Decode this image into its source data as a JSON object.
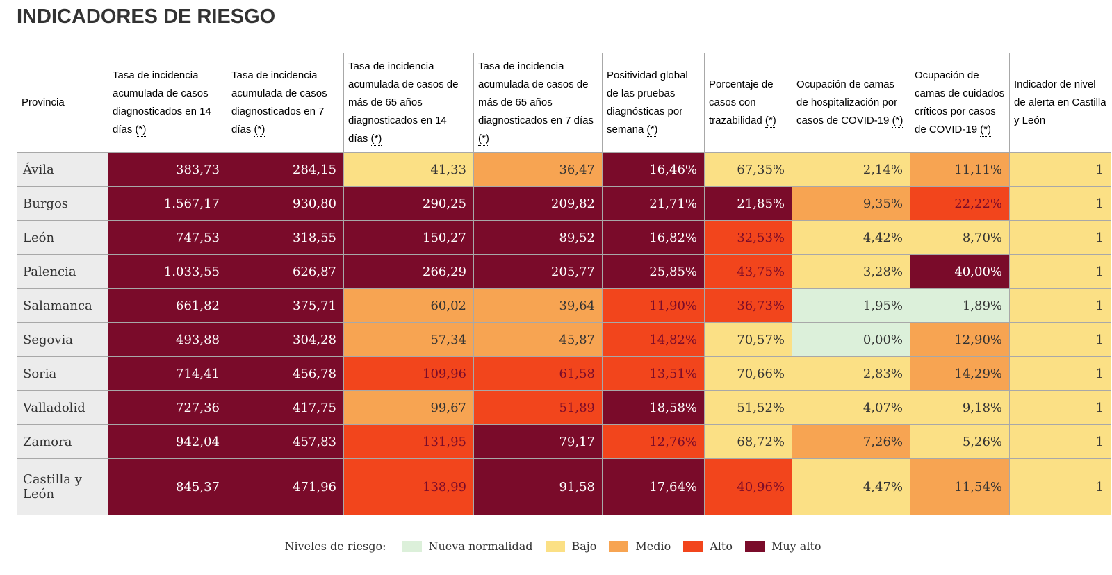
{
  "title": "INDICADORES DE RIESGO",
  "colors": {
    "nueva": "#dcf0da",
    "bajo": "#fbe085",
    "medio": "#f7a452",
    "alto": "#f2451c",
    "muyalto": "#7a0b2a"
  },
  "table": {
    "headers": [
      {
        "label": "Provincia",
        "star": ""
      },
      {
        "label": "Tasa de incidencia acumulada de casos diagnosticados en 14 días",
        "star": "(*)"
      },
      {
        "label": "Tasa de incidencia acumulada de casos diagnosticados en 7 días",
        "star": "(*)"
      },
      {
        "label": "Tasa de incidencia acumulada de casos de más de 65 años diagnosticados en 14 días",
        "star": "(*)"
      },
      {
        "label": "Tasa de incidencia acumulada de casos de más de 65 años diagnosticados en 7 días",
        "star": "(*)"
      },
      {
        "label": "Positividad global de las pruebas diagnósticas por semana",
        "star": "(*)"
      },
      {
        "label": "Porcentaje de casos con trazabilidad",
        "star": "(*)"
      },
      {
        "label": "Ocupación de camas de hospitalización por casos de COVID-19",
        "star": "(*)"
      },
      {
        "label": "Ocupación de camas de cuidados críticos por casos de COVID-19",
        "star": "(*)"
      },
      {
        "label": "Indicador de nivel de alerta en Castilla y León",
        "star": ""
      }
    ],
    "rows": [
      {
        "provincia": "Ávila",
        "cells": [
          {
            "value": "383,73",
            "level": "muyalto"
          },
          {
            "value": "284,15",
            "level": "muyalto"
          },
          {
            "value": "41,33",
            "level": "bajo"
          },
          {
            "value": "36,47",
            "level": "medio"
          },
          {
            "value": "16,46%",
            "level": "muyalto"
          },
          {
            "value": "67,35%",
            "level": "bajo"
          },
          {
            "value": "2,14%",
            "level": "bajo"
          },
          {
            "value": "11,11%",
            "level": "medio"
          },
          {
            "value": "1",
            "level": "bajo"
          }
        ]
      },
      {
        "provincia": "Burgos",
        "cells": [
          {
            "value": "1.567,17",
            "level": "muyalto"
          },
          {
            "value": "930,80",
            "level": "muyalto"
          },
          {
            "value": "290,25",
            "level": "muyalto"
          },
          {
            "value": "209,82",
            "level": "muyalto"
          },
          {
            "value": "21,71%",
            "level": "muyalto"
          },
          {
            "value": "21,85%",
            "level": "muyalto"
          },
          {
            "value": "9,35%",
            "level": "medio"
          },
          {
            "value": "22,22%",
            "level": "alto"
          },
          {
            "value": "1",
            "level": "bajo"
          }
        ]
      },
      {
        "provincia": "León",
        "cells": [
          {
            "value": "747,53",
            "level": "muyalto"
          },
          {
            "value": "318,55",
            "level": "muyalto"
          },
          {
            "value": "150,27",
            "level": "muyalto"
          },
          {
            "value": "89,52",
            "level": "muyalto"
          },
          {
            "value": "16,82%",
            "level": "muyalto"
          },
          {
            "value": "32,53%",
            "level": "alto"
          },
          {
            "value": "4,42%",
            "level": "bajo"
          },
          {
            "value": "8,70%",
            "level": "bajo"
          },
          {
            "value": "1",
            "level": "bajo"
          }
        ]
      },
      {
        "provincia": "Palencia",
        "cells": [
          {
            "value": "1.033,55",
            "level": "muyalto"
          },
          {
            "value": "626,87",
            "level": "muyalto"
          },
          {
            "value": "266,29",
            "level": "muyalto"
          },
          {
            "value": "205,77",
            "level": "muyalto"
          },
          {
            "value": "25,85%",
            "level": "muyalto"
          },
          {
            "value": "43,75%",
            "level": "alto"
          },
          {
            "value": "3,28%",
            "level": "bajo"
          },
          {
            "value": "40,00%",
            "level": "muyalto"
          },
          {
            "value": "1",
            "level": "bajo"
          }
        ]
      },
      {
        "provincia": "Salamanca",
        "cells": [
          {
            "value": "661,82",
            "level": "muyalto"
          },
          {
            "value": "375,71",
            "level": "muyalto"
          },
          {
            "value": "60,02",
            "level": "medio"
          },
          {
            "value": "39,64",
            "level": "medio"
          },
          {
            "value": "11,90%",
            "level": "alto"
          },
          {
            "value": "36,73%",
            "level": "alto"
          },
          {
            "value": "1,95%",
            "level": "nueva"
          },
          {
            "value": "1,89%",
            "level": "nueva"
          },
          {
            "value": "1",
            "level": "bajo"
          }
        ]
      },
      {
        "provincia": "Segovia",
        "cells": [
          {
            "value": "493,88",
            "level": "muyalto"
          },
          {
            "value": "304,28",
            "level": "muyalto"
          },
          {
            "value": "57,34",
            "level": "medio"
          },
          {
            "value": "45,87",
            "level": "medio"
          },
          {
            "value": "14,82%",
            "level": "alto"
          },
          {
            "value": "70,57%",
            "level": "bajo"
          },
          {
            "value": "0,00%",
            "level": "nueva"
          },
          {
            "value": "12,90%",
            "level": "medio"
          },
          {
            "value": "1",
            "level": "bajo"
          }
        ]
      },
      {
        "provincia": "Soria",
        "cells": [
          {
            "value": "714,41",
            "level": "muyalto"
          },
          {
            "value": "456,78",
            "level": "muyalto"
          },
          {
            "value": "109,96",
            "level": "alto"
          },
          {
            "value": "61,58",
            "level": "alto"
          },
          {
            "value": "13,51%",
            "level": "alto"
          },
          {
            "value": "70,66%",
            "level": "bajo"
          },
          {
            "value": "2,83%",
            "level": "bajo"
          },
          {
            "value": "14,29%",
            "level": "medio"
          },
          {
            "value": "1",
            "level": "bajo"
          }
        ]
      },
      {
        "provincia": "Valladolid",
        "cells": [
          {
            "value": "727,36",
            "level": "muyalto"
          },
          {
            "value": "417,75",
            "level": "muyalto"
          },
          {
            "value": "99,67",
            "level": "medio"
          },
          {
            "value": "51,89",
            "level": "alto"
          },
          {
            "value": "18,58%",
            "level": "muyalto"
          },
          {
            "value": "51,52%",
            "level": "bajo"
          },
          {
            "value": "4,07%",
            "level": "bajo"
          },
          {
            "value": "9,18%",
            "level": "bajo"
          },
          {
            "value": "1",
            "level": "bajo"
          }
        ]
      },
      {
        "provincia": "Zamora",
        "cells": [
          {
            "value": "942,04",
            "level": "muyalto"
          },
          {
            "value": "457,83",
            "level": "muyalto"
          },
          {
            "value": "131,95",
            "level": "alto"
          },
          {
            "value": "79,17",
            "level": "muyalto"
          },
          {
            "value": "12,76%",
            "level": "alto"
          },
          {
            "value": "68,72%",
            "level": "bajo"
          },
          {
            "value": "7,26%",
            "level": "medio"
          },
          {
            "value": "5,26%",
            "level": "bajo"
          },
          {
            "value": "1",
            "level": "bajo"
          }
        ]
      },
      {
        "provincia": "Castilla y León",
        "cells": [
          {
            "value": "845,37",
            "level": "muyalto"
          },
          {
            "value": "471,96",
            "level": "muyalto"
          },
          {
            "value": "138,99",
            "level": "alto"
          },
          {
            "value": "91,58",
            "level": "muyalto"
          },
          {
            "value": "17,64%",
            "level": "muyalto"
          },
          {
            "value": "40,96%",
            "level": "alto"
          },
          {
            "value": "4,47%",
            "level": "bajo"
          },
          {
            "value": "11,54%",
            "level": "medio"
          },
          {
            "value": "1",
            "level": "bajo"
          }
        ]
      }
    ]
  },
  "legend": {
    "title": "Niveles de riesgo:",
    "items": [
      {
        "label": "Nueva normalidad",
        "level": "nueva"
      },
      {
        "label": "Bajo",
        "level": "bajo"
      },
      {
        "label": "Medio",
        "level": "medio"
      },
      {
        "label": "Alto",
        "level": "alto"
      },
      {
        "label": "Muy alto",
        "level": "muyalto"
      }
    ]
  },
  "chart_data": {
    "type": "table",
    "title": "INDICADORES DE RIESGO",
    "columns": [
      "Provincia",
      "Tasa de incidencia acumulada de casos diagnosticados en 14 días",
      "Tasa de incidencia acumulada de casos diagnosticados en 7 días",
      "Tasa de incidencia acumulada de casos de más de 65 años diagnosticados en 14 días",
      "Tasa de incidencia acumulada de casos de más de 65 años diagnosticados en 7 días",
      "Positividad global de las pruebas diagnósticas por semana",
      "Porcentaje de casos con trazabilidad",
      "Ocupación de camas de hospitalización por casos de COVID-19",
      "Ocupación de camas de cuidados críticos por casos de COVID-19",
      "Indicador de nivel de alerta en Castilla y León"
    ],
    "categories": [
      "Ávila",
      "Burgos",
      "León",
      "Palencia",
      "Salamanca",
      "Segovia",
      "Soria",
      "Valladolid",
      "Zamora",
      "Castilla y León"
    ],
    "series": [
      {
        "name": "IA 14 días",
        "values": [
          383.73,
          1567.17,
          747.53,
          1033.55,
          661.82,
          493.88,
          714.41,
          727.36,
          942.04,
          845.37
        ]
      },
      {
        "name": "IA 7 días",
        "values": [
          284.15,
          930.8,
          318.55,
          626.87,
          375.71,
          304.28,
          456.78,
          417.75,
          457.83,
          471.96
        ]
      },
      {
        "name": "IA >65 años 14 días",
        "values": [
          41.33,
          290.25,
          150.27,
          266.29,
          60.02,
          57.34,
          109.96,
          99.67,
          131.95,
          138.99
        ]
      },
      {
        "name": "IA >65 años 7 días",
        "values": [
          36.47,
          209.82,
          89.52,
          205.77,
          39.64,
          45.87,
          61.58,
          51.89,
          79.17,
          91.58
        ]
      },
      {
        "name": "Positividad (%)",
        "values": [
          16.46,
          21.71,
          16.82,
          25.85,
          11.9,
          14.82,
          13.51,
          18.58,
          12.76,
          17.64
        ]
      },
      {
        "name": "Trazabilidad (%)",
        "values": [
          67.35,
          21.85,
          32.53,
          43.75,
          36.73,
          70.57,
          70.66,
          51.52,
          68.72,
          40.96
        ]
      },
      {
        "name": "Ocupación hospitalización (%)",
        "values": [
          2.14,
          9.35,
          4.42,
          3.28,
          1.95,
          0.0,
          2.83,
          4.07,
          7.26,
          4.47
        ]
      },
      {
        "name": "Ocupación críticos (%)",
        "values": [
          11.11,
          22.22,
          8.7,
          40.0,
          1.89,
          12.9,
          14.29,
          9.18,
          5.26,
          11.54
        ]
      },
      {
        "name": "Nivel de alerta",
        "values": [
          1,
          1,
          1,
          1,
          1,
          1,
          1,
          1,
          1,
          1
        ]
      }
    ],
    "legend_levels": [
      "Nueva normalidad",
      "Bajo",
      "Medio",
      "Alto",
      "Muy alto"
    ],
    "legend_position": "bottom-center"
  }
}
